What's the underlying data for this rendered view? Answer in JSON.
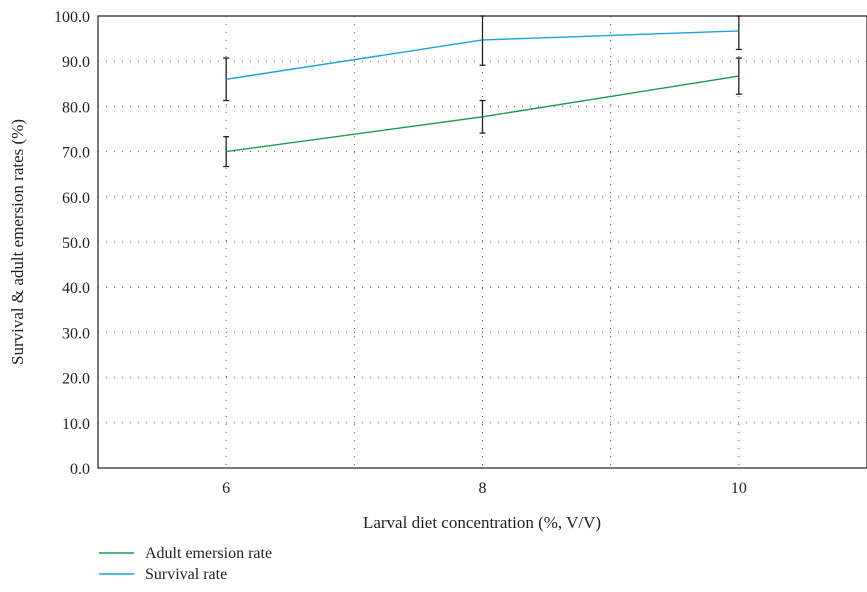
{
  "chart_data": {
    "type": "line",
    "title": "",
    "xlabel": "Larval diet concentration (%, V/V)",
    "ylabel": "Survival & adult emersion rates (%)",
    "x": [
      6,
      8,
      10
    ],
    "x_ticks": [
      "6",
      "8",
      "10"
    ],
    "xlim": [
      5,
      11
    ],
    "ylim": [
      0,
      100
    ],
    "y_ticks": [
      "0.0",
      "10.0",
      "20.0",
      "30.0",
      "40.0",
      "50.0",
      "60.0",
      "70.0",
      "80.0",
      "90.0",
      "100.0"
    ],
    "grid": true,
    "legend_position": "bottom-left",
    "series": [
      {
        "name": "Adult emersion rate",
        "color": "#1a9b50",
        "values": [
          70.0,
          77.7,
          86.7
        ],
        "errors": [
          3.3,
          3.6,
          4.0
        ]
      },
      {
        "name": "Survival rate",
        "color": "#1aa3dc",
        "values": [
          86.0,
          94.7,
          96.7
        ],
        "errors": [
          4.7,
          5.6,
          4.1
        ]
      }
    ]
  }
}
